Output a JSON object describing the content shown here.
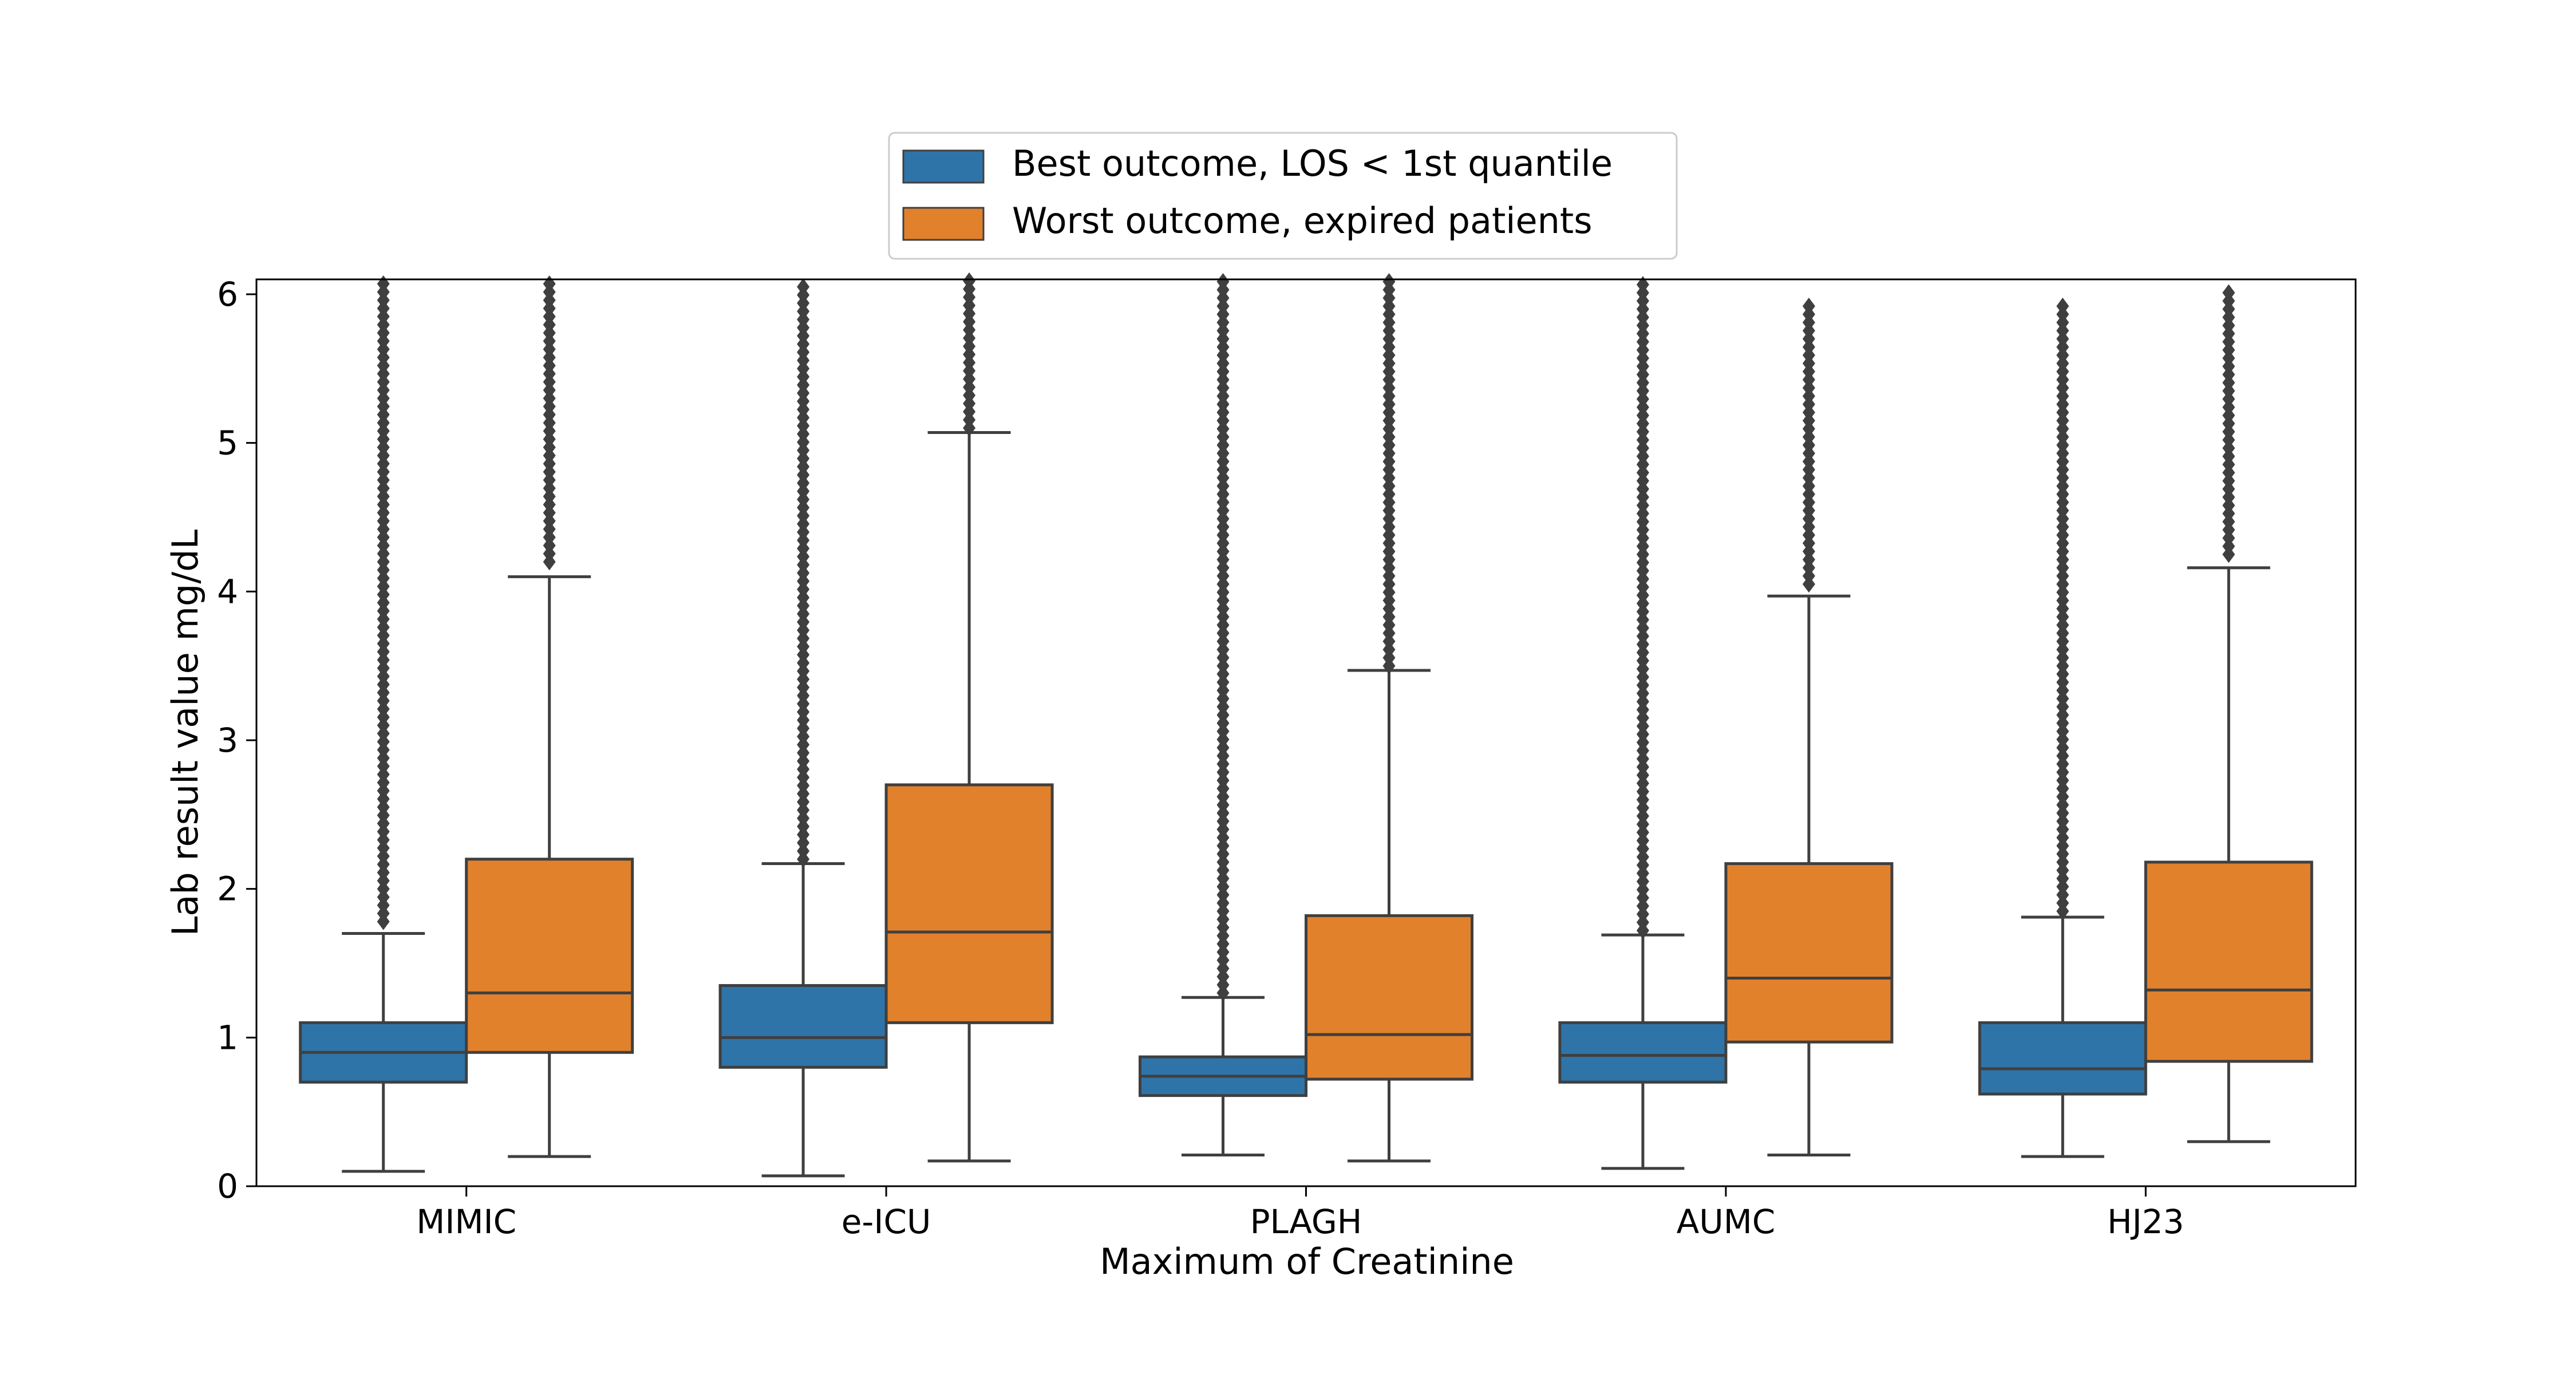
{
  "chart_data": {
    "type": "box",
    "title": "",
    "xlabel": "Maximum of Creatinine",
    "ylabel": "Lab result value mg/dL",
    "ylim": [
      0,
      6.1
    ],
    "yticks": [
      0,
      1,
      2,
      3,
      4,
      5,
      6
    ],
    "categories": [
      "MIMIC",
      "e-ICU",
      "PLAGH",
      "AUMC",
      "HJ23"
    ],
    "legend_position": "top-center",
    "grid": false,
    "series": [
      {
        "name": "Best outcome, LOS < 1st quantile",
        "color": "#2f74a8",
        "boxes": [
          {
            "whisker_low": 0.1,
            "q1": 0.7,
            "median": 0.9,
            "q3": 1.1,
            "whisker_high": 1.7,
            "outlier_low": 1.78,
            "outlier_high": 6.1
          },
          {
            "whisker_low": 0.07,
            "q1": 0.8,
            "median": 1.0,
            "q3": 1.35,
            "whisker_high": 2.17,
            "outlier_low": 2.2,
            "outlier_high": 6.1
          },
          {
            "whisker_low": 0.21,
            "q1": 0.61,
            "median": 0.74,
            "q3": 0.87,
            "whisker_high": 1.27,
            "outlier_low": 1.3,
            "outlier_high": 6.1
          },
          {
            "whisker_low": 0.12,
            "q1": 0.7,
            "median": 0.88,
            "q3": 1.1,
            "whisker_high": 1.69,
            "outlier_low": 1.72,
            "outlier_high": 6.1
          },
          {
            "whisker_low": 0.2,
            "q1": 0.62,
            "median": 0.79,
            "q3": 1.1,
            "whisker_high": 1.81,
            "outlier_low": 1.85,
            "outlier_high": 5.92
          }
        ]
      },
      {
        "name": "Worst outcome, expired patients",
        "color": "#e1812c",
        "boxes": [
          {
            "whisker_low": 0.2,
            "q1": 0.9,
            "median": 1.3,
            "q3": 2.2,
            "whisker_high": 4.1,
            "outlier_low": 4.2,
            "outlier_high": 6.1
          },
          {
            "whisker_low": 0.17,
            "q1": 1.1,
            "median": 1.71,
            "q3": 2.7,
            "whisker_high": 5.07,
            "outlier_low": 5.1,
            "outlier_high": 6.1
          },
          {
            "whisker_low": 0.17,
            "q1": 0.72,
            "median": 1.02,
            "q3": 1.82,
            "whisker_high": 3.47,
            "outlier_low": 3.5,
            "outlier_high": 6.1
          },
          {
            "whisker_low": 0.21,
            "q1": 0.97,
            "median": 1.4,
            "q3": 2.17,
            "whisker_high": 3.97,
            "outlier_low": 4.05,
            "outlier_high": 5.96
          },
          {
            "whisker_low": 0.3,
            "q1": 0.84,
            "median": 1.32,
            "q3": 2.18,
            "whisker_high": 4.16,
            "outlier_low": 4.25,
            "outlier_high": 6.05
          }
        ]
      }
    ]
  }
}
